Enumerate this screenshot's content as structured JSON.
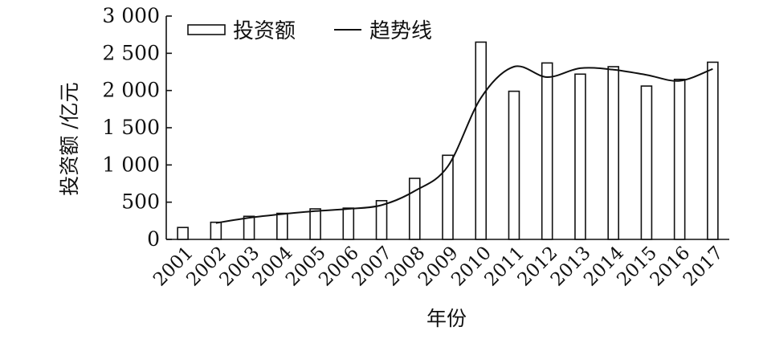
{
  "chart_data": {
    "type": "bar",
    "title": "",
    "xlabel": "年份",
    "ylabel": "投资额 /亿元",
    "categories": [
      "2001",
      "2002",
      "2003",
      "2004",
      "2005",
      "2006",
      "2007",
      "2008",
      "2009",
      "2010",
      "2011",
      "2012",
      "2013",
      "2014",
      "2015",
      "2016",
      "2017"
    ],
    "series": [
      {
        "name": "投资额",
        "kind": "bar",
        "values": [
          160,
          230,
          310,
          350,
          410,
          420,
          520,
          820,
          1130,
          2650,
          1990,
          2370,
          2220,
          2320,
          2060,
          2150,
          2380
        ]
      },
      {
        "name": "趋势线",
        "kind": "line",
        "values": [
          null,
          220,
          290,
          340,
          380,
          410,
          460,
          650,
          980,
          1900,
          2320,
          2180,
          2300,
          2280,
          2210,
          2130,
          2290
        ]
      }
    ],
    "ylim": [
      0,
      3000
    ],
    "yticks": [
      0,
      500,
      1000,
      1500,
      2000,
      2500,
      3000
    ],
    "ytick_labels": [
      "0",
      "500",
      "1 000",
      "1 500",
      "2 000",
      "2 500",
      "3 000"
    ],
    "legend_position": "top-left",
    "grid": false,
    "colors": {
      "bar_fill": "#ffffff",
      "bar_stroke": "#111111",
      "line": "#111111",
      "axis": "#111111"
    }
  }
}
